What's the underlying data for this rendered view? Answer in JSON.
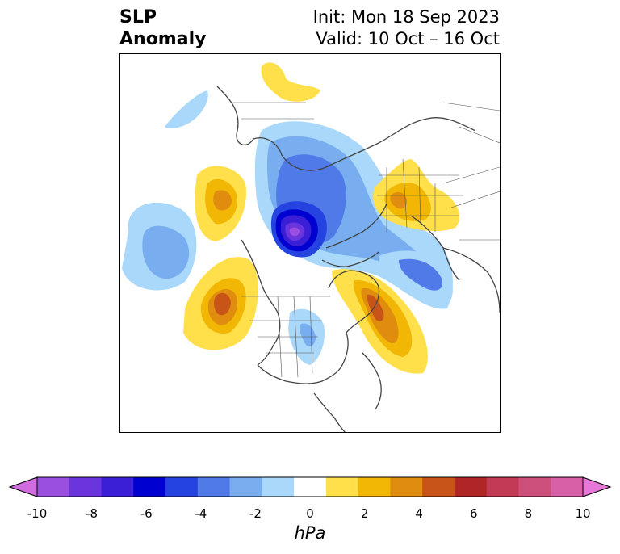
{
  "title": {
    "left_line1": "SLP",
    "left_line2": "Anomaly",
    "right_line1": "Init: Mon 18 Sep 2023",
    "right_line2": "Valid: 10 Oct – 16 Oct"
  },
  "colorbar": {
    "label": "hPa",
    "ticks": [
      "-10",
      "-8",
      "-6",
      "-4",
      "-2",
      "0",
      "2",
      "4",
      "6",
      "8",
      "10"
    ],
    "colors": [
      "#d16be0",
      "#9b4fe0",
      "#6a35dd",
      "#3a1fd6",
      "#0000d0",
      "#2543e0",
      "#4f7ae8",
      "#78aef0",
      "#a9d8fa",
      "#ffffff",
      "#ffe04a",
      "#f2b705",
      "#e08c0e",
      "#c85418",
      "#b02525",
      "#c23a55",
      "#cc4f7c",
      "#d860a6",
      "#e878d8"
    ]
  }
}
